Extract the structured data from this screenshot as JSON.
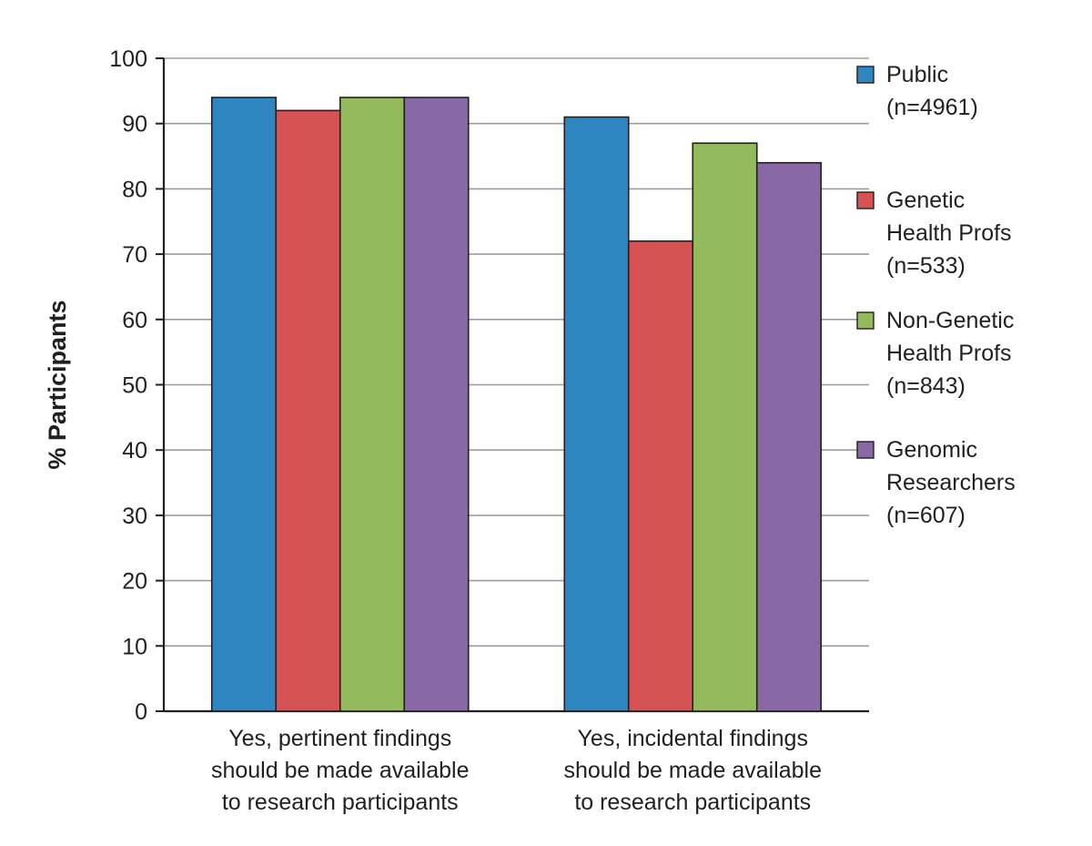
{
  "chart_data": {
    "type": "bar",
    "title": "",
    "xlabel": "",
    "ylabel": "% Participants",
    "ylim": [
      0,
      100
    ],
    "yticks": [
      0,
      10,
      20,
      30,
      40,
      50,
      60,
      70,
      80,
      90,
      100
    ],
    "grid": true,
    "legend_position": "right",
    "categories": [
      [
        "Yes, pertinent findings",
        "should be made available",
        "to research participants"
      ],
      [
        "Yes, incidental findings",
        "should be made available",
        "to research participants"
      ]
    ],
    "series": [
      {
        "name": [
          "Public",
          "(n=4961)"
        ],
        "color": "#2e86c1",
        "values": [
          94,
          91
        ]
      },
      {
        "name": [
          "Genetic",
          "Health Profs",
          "(n=533)"
        ],
        "color": "#d65353",
        "values": [
          92,
          72
        ]
      },
      {
        "name": [
          "Non-Genetic",
          "Health Profs",
          "(n=843)"
        ],
        "color": "#93bb5c",
        "values": [
          94,
          87
        ]
      },
      {
        "name": [
          "Genomic",
          "Researchers",
          "(n=607)"
        ],
        "color": "#8968a6",
        "values": [
          94,
          84
        ]
      }
    ]
  }
}
